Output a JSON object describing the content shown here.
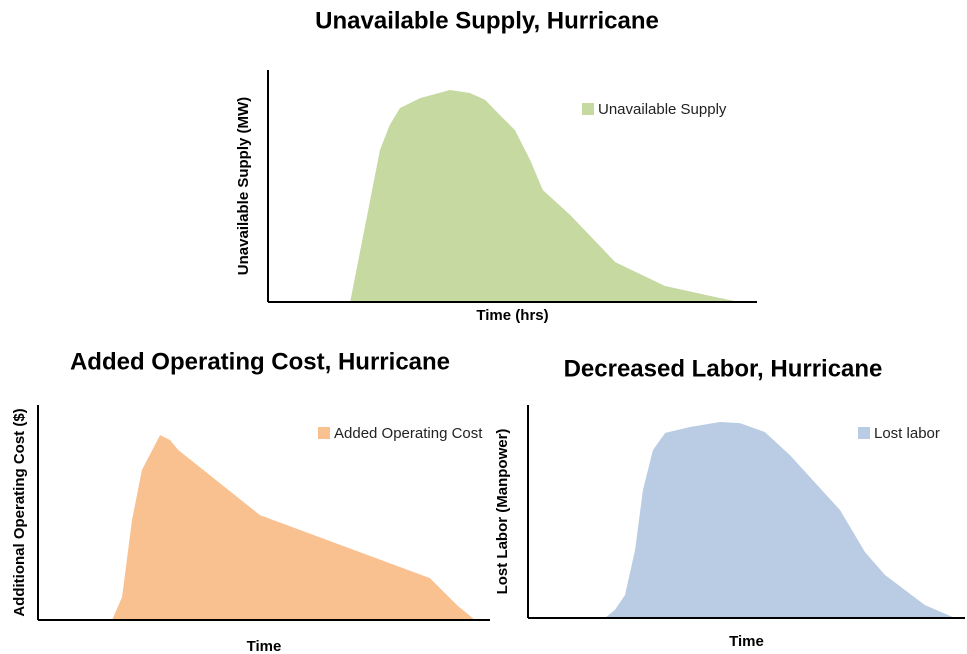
{
  "chart_data": [
    {
      "type": "area",
      "title": "Unavailable Supply, Hurricane",
      "xlabel": "Time (hrs)",
      "ylabel": "Unavailable Supply (MW)",
      "xlim": [
        0,
        100
      ],
      "ylim": [
        0,
        100
      ],
      "x": [
        16.8,
        22.9,
        24.9,
        27.0,
        31.1,
        37.2,
        41.3,
        44.4,
        47.4,
        50.5,
        53.6,
        56.2,
        61.8,
        71.0,
        81.2,
        92.4,
        96.5
      ],
      "series": [
        {
          "name": "Unavailable Supply",
          "color": "#c5d9a0",
          "values": [
            0,
            65.5,
            76.3,
            83.6,
            87.9,
            91.4,
            90.1,
            87.1,
            80.6,
            74.1,
            61.2,
            48.3,
            37.5,
            17.2,
            6.9,
            1.7,
            0
          ]
        }
      ]
    },
    {
      "type": "area",
      "title": "Added Operating Cost, Hurricane",
      "xlabel": "Time",
      "ylabel": "Additional Operating Cost ($)",
      "xlim": [
        0,
        100
      ],
      "ylim": [
        0,
        100
      ],
      "x": [
        16.4,
        18.6,
        20.8,
        23.0,
        27.0,
        29.2,
        31.0,
        49.1,
        86.7,
        92.9,
        96.7
      ],
      "series": [
        {
          "name": "Added Operating Cost",
          "color": "#f9c090",
          "values": [
            0,
            10.7,
            46.5,
            69.8,
            86.0,
            83.7,
            79.1,
            48.8,
            19.5,
            6.5,
            0
          ]
        }
      ]
    },
    {
      "type": "area",
      "title": "Decreased Labor, Hurricane",
      "xlabel": "Time",
      "ylabel": "Lost Labor (Manpower)",
      "xlim": [
        0,
        100
      ],
      "ylim": [
        0,
        100
      ],
      "x": [
        17.6,
        19.9,
        22.2,
        24.5,
        26.3,
        28.6,
        31.4,
        37.1,
        43.9,
        48.5,
        54.2,
        59.9,
        71.4,
        77.1,
        81.7,
        90.8,
        97.7
      ],
      "series": [
        {
          "name": "Lost labor",
          "color": "#b9cce4",
          "values": [
            0,
            3.8,
            10.8,
            31.9,
            60.1,
            78.9,
            86.9,
            89.7,
            92.0,
            91.5,
            87.3,
            76.5,
            50.7,
            31.0,
            20.2,
            6.1,
            0
          ]
        }
      ]
    }
  ]
}
